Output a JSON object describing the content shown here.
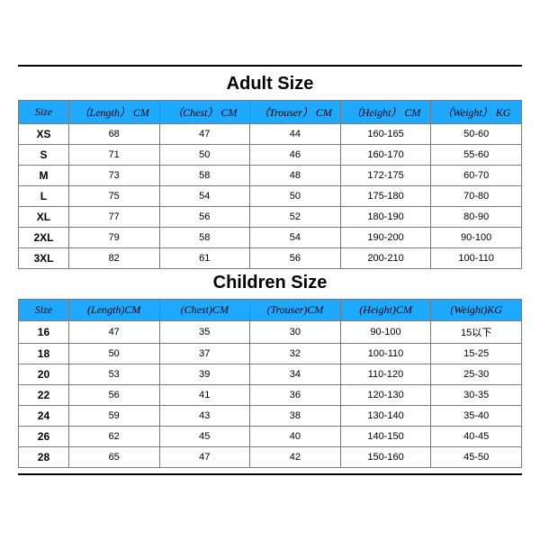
{
  "colors": {
    "header_bg": "#1fa8ff",
    "border": "#7a7a7a",
    "title_text": "#000000",
    "cell_text": "#000000",
    "background": "#ffffff"
  },
  "adult": {
    "title": "Adult Size",
    "columns": [
      "Size",
      "（Length） CM",
      "（Chest） CM",
      "（Trouser） CM",
      "（Height） CM",
      "（Weight） KG"
    ],
    "rows": [
      [
        "XS",
        "68",
        "47",
        "44",
        "160-165",
        "50-60"
      ],
      [
        "S",
        "71",
        "50",
        "46",
        "160-170",
        "55-60"
      ],
      [
        "M",
        "73",
        "58",
        "48",
        "172-175",
        "60-70"
      ],
      [
        "L",
        "75",
        "54",
        "50",
        "175-180",
        "70-80"
      ],
      [
        "XL",
        "77",
        "56",
        "52",
        "180-190",
        "80-90"
      ],
      [
        "2XL",
        "79",
        "58",
        "54",
        "190-200",
        "90-100"
      ],
      [
        "3XL",
        "82",
        "61",
        "56",
        "200-210",
        "100-110"
      ]
    ]
  },
  "children": {
    "title": "Children Size",
    "columns": [
      "Size",
      "(Length)CM",
      "(Chest)CM",
      "(Trouser)CM",
      "(Height)CM",
      "(Weight)KG"
    ],
    "rows": [
      [
        "16",
        "47",
        "35",
        "30",
        "90-100",
        "15以下"
      ],
      [
        "18",
        "50",
        "37",
        "32",
        "100-110",
        "15-25"
      ],
      [
        "20",
        "53",
        "39",
        "34",
        "110-120",
        "25-30"
      ],
      [
        "22",
        "56",
        "41",
        "36",
        "120-130",
        "30-35"
      ],
      [
        "24",
        "59",
        "43",
        "38",
        "130-140",
        "35-40"
      ],
      [
        "26",
        "62",
        "45",
        "40",
        "140-150",
        "40-45"
      ],
      [
        "28",
        "65",
        "47",
        "42",
        "150-160",
        "45-50"
      ]
    ]
  }
}
